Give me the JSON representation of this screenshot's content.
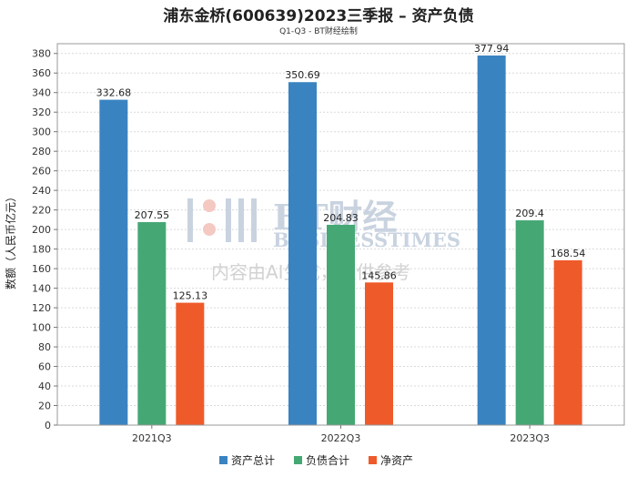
{
  "title": "浦东金桥(600639)2023三季报 – 资产负债",
  "subtitle": "Q1-Q3 - BT财经绘制",
  "watermark": {
    "brand_cn": "BT财经",
    "brand_en": "BUSINESSTIMES",
    "notice": "内容由AI生成，仅供参考"
  },
  "colors": {
    "total_assets": "#3a83c1",
    "total_liabilities": "#45a874",
    "net_assets": "#ef5a2a"
  },
  "chart_data": {
    "type": "bar",
    "categories": [
      "2021Q3",
      "2022Q3",
      "2023Q3"
    ],
    "series": [
      {
        "name": "资产总计",
        "values": [
          332.68,
          350.69,
          377.94
        ]
      },
      {
        "name": "负债合计",
        "values": [
          207.55,
          204.83,
          209.4
        ]
      },
      {
        "name": "净资产",
        "values": [
          125.13,
          145.86,
          168.54
        ]
      }
    ],
    "ylabel": "数额（人民币亿元）",
    "xlabel": "",
    "ylim": [
      0,
      390
    ],
    "yticks": [
      0,
      20,
      40,
      60,
      80,
      100,
      120,
      140,
      160,
      180,
      200,
      220,
      240,
      260,
      280,
      300,
      320,
      340,
      360,
      380
    ],
    "grid": true,
    "legend": "bottom-center"
  }
}
